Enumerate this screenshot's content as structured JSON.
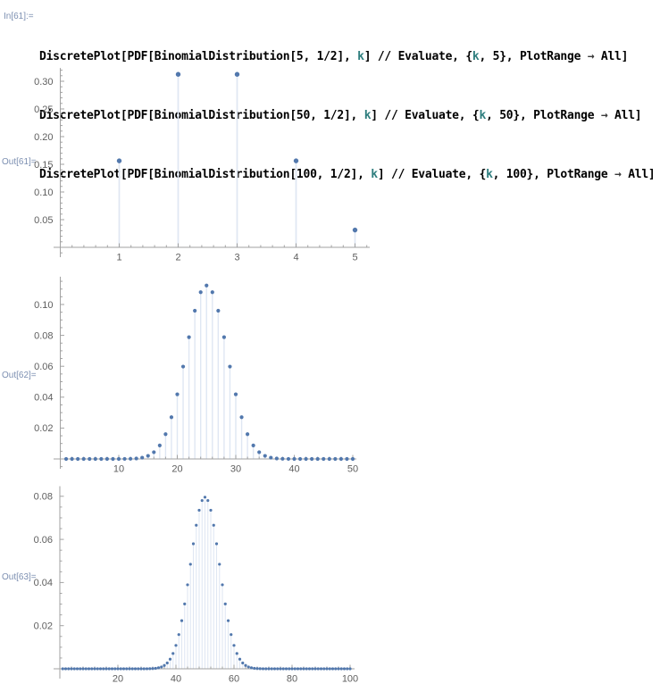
{
  "notebook": {
    "input_cell": {
      "label": "In[61]:=",
      "code_lines": [
        [
          [
            "DiscretePlot[PDF[BinomialDistribution[5, 1/2], ",
            "code"
          ],
          [
            "k",
            "var"
          ],
          [
            "] // Evaluate, {",
            "code"
          ],
          [
            "k",
            "var"
          ],
          [
            ", 5}, PlotRange ",
            "code"
          ],
          [
            "→",
            "arrow"
          ],
          [
            " All]",
            "code"
          ]
        ],
        [
          [
            "DiscretePlot[PDF[BinomialDistribution[50, 1/2], ",
            "code"
          ],
          [
            "k",
            "var"
          ],
          [
            "] // Evaluate, {",
            "code"
          ],
          [
            "k",
            "var"
          ],
          [
            ", 50}, PlotRange ",
            "code"
          ],
          [
            "→",
            "arrow"
          ],
          [
            " All]",
            "code"
          ]
        ],
        [
          [
            "DiscretePlot[PDF[BinomialDistribution[100, 1/2], ",
            "code"
          ],
          [
            "k",
            "var"
          ],
          [
            "] // Evaluate, {",
            "code"
          ],
          [
            "k",
            "var"
          ],
          [
            ", 100}, PlotRange ",
            "code"
          ],
          [
            "→",
            "arrow"
          ],
          [
            " All]",
            "code"
          ]
        ]
      ]
    },
    "output_cells": [
      {
        "label": "Out[61]="
      },
      {
        "label": "Out[62]="
      },
      {
        "label": "Out[63]="
      }
    ]
  },
  "colors": {
    "point": "#5278ad",
    "stem": "#dfe7f3",
    "axis": "#a2a2a2",
    "tick_label": "#5e5e5e",
    "cell_label": "#7c8fb1",
    "code_text": "#000000",
    "local_variable": "#2e7e7e"
  },
  "chart_data": [
    {
      "type": "stem",
      "title": "",
      "xlabel": "",
      "ylabel": "",
      "expression": "PDF[BinomialDistribution[5, 1/2], k]",
      "n": 5,
      "p": 0.5,
      "x_from": 1,
      "x_to": 5,
      "xlim": [
        0,
        5.25
      ],
      "ylim": [
        0,
        0.324
      ],
      "x_ticks": [
        1,
        2,
        3,
        4,
        5
      ],
      "y_ticks": [
        0.05,
        0.1,
        0.15,
        0.2,
        0.25,
        0.3
      ],
      "x_minor_step": 0.2,
      "y_minor_step": 0.01,
      "grid": false,
      "values": [
        0.15625,
        0.3125,
        0.3125,
        0.15625,
        0.03125
      ]
    },
    {
      "type": "stem",
      "title": "",
      "xlabel": "",
      "ylabel": "",
      "expression": "PDF[BinomialDistribution[50, 1/2], k]",
      "n": 50,
      "p": 0.5,
      "x_from": 1,
      "x_to": 50,
      "xlim": [
        0,
        50.6
      ],
      "ylim": [
        0,
        0.118
      ],
      "x_ticks": [
        10,
        20,
        30,
        40,
        50
      ],
      "y_ticks": [
        0.02,
        0.04,
        0.06,
        0.08,
        0.1
      ],
      "x_minor_step": 2,
      "y_minor_step": 0.005,
      "grid": false,
      "values": [
        4.4409e-14,
        1.088e-12,
        1.7408e-11,
        2.0455e-10,
        1.8818e-09,
        1.4114e-08,
        8.8715e-08,
        4.7684e-07,
        2.2253e-06,
        9.1234e-06,
        3.3177e-05,
        0.00010783,
        0.00031518,
        0.00083298,
        0.0019992,
        0.0043731,
        0.0087463,
        0.016035,
        0.027006,
        0.041859,
        0.059799,
        0.078828,
        0.095963,
        0.10796,
        0.11228,
        0.10796,
        0.095963,
        0.078828,
        0.059799,
        0.041859,
        0.027006,
        0.016035,
        0.0087463,
        0.0043731,
        0.0019992,
        0.00083298,
        0.00031518,
        0.00010783,
        3.3177e-05,
        9.1234e-06,
        2.2253e-06,
        4.7684e-07,
        8.8715e-08,
        1.4114e-08,
        1.8818e-09,
        2.0455e-10,
        1.7408e-11,
        1.088e-12,
        4.4409e-14,
        8.8818e-16
      ]
    },
    {
      "type": "stem",
      "title": "",
      "xlabel": "",
      "ylabel": "",
      "expression": "PDF[BinomialDistribution[100, 1/2], k]",
      "n": 100,
      "p": 0.5,
      "x_from": 1,
      "x_to": 100,
      "xlim": [
        0,
        101.5
      ],
      "ylim": [
        0,
        0.0847
      ],
      "x_ticks": [
        20,
        40,
        60,
        80,
        100
      ],
      "y_ticks": [
        0.02,
        0.04,
        0.06,
        0.08
      ],
      "x_minor_step": 4,
      "y_minor_step": 0.005,
      "grid": false,
      "values": [
        7.8877e-29,
        3.9044e-27,
        1.2754e-25,
        3.0929e-24,
        5.9384e-23,
        9.4025e-22,
        1.2626e-20,
        1.4678e-19,
        1.5004e-18,
        1.3654e-17,
        1.1171e-16,
        8.2855e-16,
        5.6086e-15,
        3.4854e-14,
        1.9983e-13,
        1.0616e-12,
        5.2454e-12,
        2.4188e-11,
        1.0439e-10,
        4.2279e-10,
        1.6106e-09,
        5.7836e-09,
        1.9614e-08,
        6.2928e-08,
        1.913e-07,
        5.5183e-07,
        1.5124e-06,
        3.9432e-06,
        9.7899e-06,
        2.317e-05,
        5.2318e-05,
        0.00011281,
        0.00023246,
        0.00045808,
        0.00086381,
        0.0015597,
        0.0026978,
        0.0044729,
        0.0071107,
        0.010844,
        0.015869,
        0.022293,
        0.03007,
        0.038954,
        0.048474,
        0.057958,
        0.066589,
        0.073527,
        0.078029,
        0.079589,
        0.078029,
        0.073527,
        0.066589,
        0.057958,
        0.048474,
        0.038954,
        0.03007,
        0.022293,
        0.015869,
        0.010844,
        0.0071107,
        0.0044729,
        0.0026978,
        0.0015597,
        0.00086381,
        0.00045808,
        0.00023246,
        0.00011281,
        5.2318e-05,
        2.317e-05,
        9.7899e-06,
        3.9432e-06,
        1.5124e-06,
        5.5183e-07,
        1.913e-07,
        6.2928e-08,
        1.9614e-08,
        5.7836e-09,
        1.6106e-09,
        4.2279e-10,
        1.0439e-10,
        2.4188e-11,
        5.2454e-12,
        1.0616e-12,
        1.9983e-13,
        3.4854e-14,
        5.6086e-15,
        8.2855e-16,
        1.1171e-16,
        1.3654e-17,
        1.5004e-18,
        1.4678e-19,
        1.2626e-20,
        9.4025e-22,
        5.9384e-23,
        3.0929e-24,
        1.2754e-25,
        3.9044e-27,
        7.8877e-29,
        7.8886e-31
      ]
    }
  ]
}
